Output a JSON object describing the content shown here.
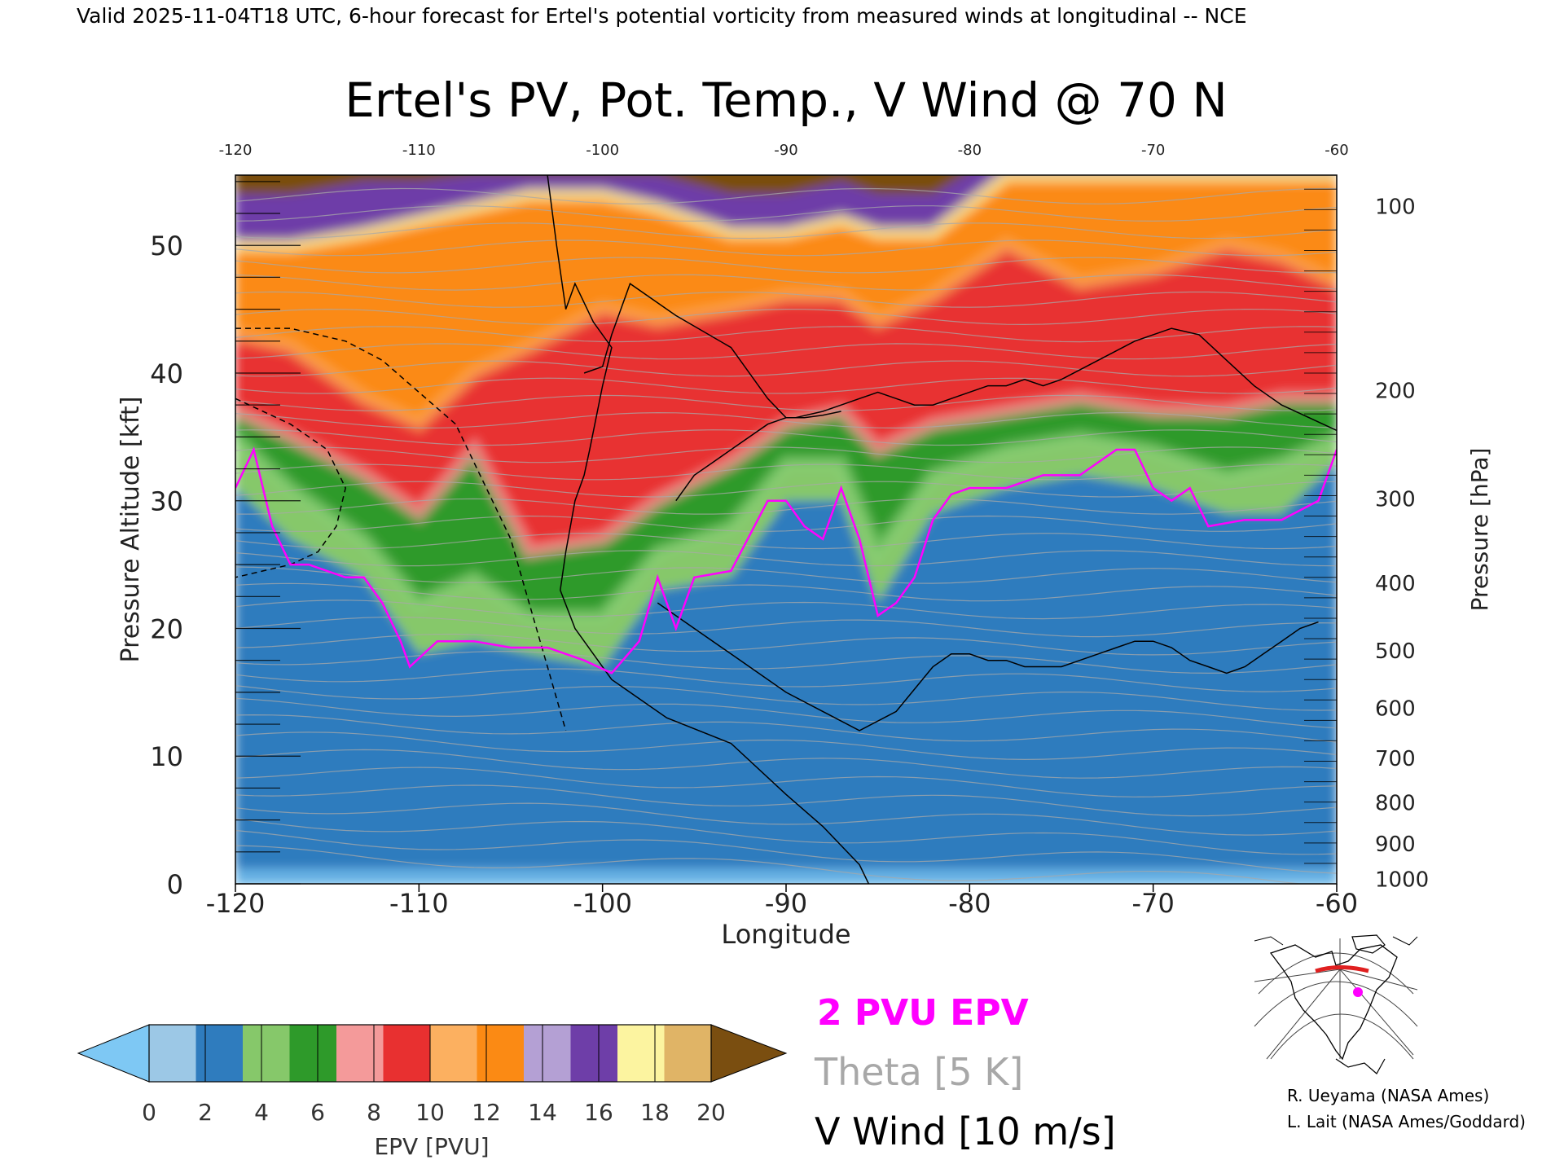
{
  "header": {
    "valid_line": "Valid 2025-11-04T18 UTC, 6-hour forecast for Ertel's potential vorticity from measured winds at longitudinal -- NCE"
  },
  "chart_data": {
    "type": "heatmap",
    "title": "Ertel's PV, Pot. Temp., V Wind @ 70 N",
    "xlabel": "Longitude",
    "ylabel_left": "Pressure Altitude [kft]",
    "ylabel_right": "Pressure [hPa]",
    "xlim": [
      -120,
      -60
    ],
    "ylim": [
      0,
      55.5
    ],
    "x_ticks": [
      -120,
      -110,
      -100,
      -90,
      -80,
      -70,
      -60
    ],
    "x_tick_labels": [
      "-120",
      "-110",
      "-100",
      "-90",
      "-80",
      "-70",
      "-60"
    ],
    "y_ticks": [
      0,
      10,
      20,
      30,
      40,
      50
    ],
    "y_tick_labels": [
      "0",
      "10",
      "20",
      "30",
      "40",
      "50"
    ],
    "pressure_ticks": [
      {
        "label": "100",
        "kft": 53.1
      },
      {
        "label": "200",
        "kft": 38.7
      },
      {
        "label": "300",
        "kft": 30.2
      },
      {
        "label": "400",
        "kft": 23.6
      },
      {
        "label": "500",
        "kft": 18.3
      },
      {
        "label": "600",
        "kft": 13.8
      },
      {
        "label": "700",
        "kft": 9.9
      },
      {
        "label": "800",
        "kft": 6.4
      },
      {
        "label": "900",
        "kft": 3.2
      },
      {
        "label": "1000",
        "kft": 0.4
      }
    ],
    "pv_2pvu_contour": {
      "x": [
        -120,
        -119,
        -118,
        -117,
        -116,
        -114,
        -113,
        -112,
        -111,
        -110.5,
        -109,
        -107,
        -105,
        -103,
        -101,
        -99.5,
        -98,
        -97,
        -96,
        -95,
        -93,
        -91,
        -90,
        -89,
        -88,
        -87,
        -86,
        -85,
        -84,
        -83,
        -82,
        -81,
        -80,
        -78,
        -76,
        -74,
        -72,
        -71,
        -70,
        -69,
        -68,
        -67,
        -65,
        -63,
        -61,
        -60
      ],
      "y": [
        31,
        34,
        28,
        25,
        25,
        24,
        24,
        22,
        19,
        17,
        19,
        19,
        18.5,
        18.5,
        17.5,
        16.5,
        19,
        24,
        20,
        24,
        24.5,
        30,
        30,
        28,
        27,
        31,
        27,
        21,
        22,
        24,
        28.5,
        30.5,
        31,
        31,
        32,
        32,
        34,
        34,
        31,
        30,
        31,
        28,
        28.5,
        28.5,
        30,
        34
      ]
    },
    "v_wind_contours": [
      {
        "label": "10",
        "x": [
          -103,
          -102.5,
          -102,
          -101.5,
          -100.5,
          -99.5,
          -100,
          -100.7,
          -101,
          -101.5,
          -102,
          -102.3,
          -101.5,
          -99.5,
          -96.5,
          -93,
          -90,
          -88,
          -87,
          -86,
          -85.5
        ],
        "y": [
          55.5,
          50,
          45,
          47,
          44,
          42,
          39,
          34,
          32,
          30,
          26,
          23,
          20,
          16,
          13,
          11,
          7,
          4.5,
          3,
          1.5,
          0
        ]
      },
      {
        "label": "10",
        "x": [
          -101,
          -100,
          -99.5,
          -98.5,
          -96,
          -93,
          -91,
          -90,
          -89.5,
          -88,
          -87,
          -86,
          -85,
          -84,
          -83,
          -82,
          -81,
          -79,
          -78,
          -77,
          -76,
          -75,
          -73,
          -71,
          -69,
          -67.5,
          -66,
          -64.5,
          -63,
          -61.5,
          -60
        ],
        "y": [
          40,
          40.5,
          43,
          47,
          44.5,
          42,
          38,
          36.5,
          36.5,
          37,
          37.5,
          38,
          38.5,
          38,
          37.5,
          37.5,
          38,
          39,
          39,
          39.5,
          39,
          39.5,
          41,
          42.5,
          43.5,
          43,
          41,
          39,
          37.5,
          36.5,
          35.5
        ]
      },
      {
        "label": "10",
        "x": [
          -96,
          -95,
          -94,
          -93,
          -92,
          -91,
          -90,
          -89,
          -88,
          -87
        ],
        "y": [
          30,
          32,
          33,
          34,
          35,
          36,
          36.5,
          36.5,
          36.7,
          37
        ]
      },
      {
        "label": "10",
        "x": [
          -97,
          -95,
          -93,
          -90,
          -88,
          -86,
          -84,
          -82,
          -81,
          -80,
          -79,
          -78,
          -77,
          -76,
          -75,
          -74,
          -73,
          -72,
          -71,
          -70,
          -69,
          -68,
          -67,
          -66,
          -65,
          -64,
          -63,
          -62,
          -61
        ],
        "y": [
          22,
          20,
          18,
          15,
          13.5,
          12,
          13.5,
          17,
          18,
          18,
          17.5,
          17.5,
          17,
          17,
          17,
          17.5,
          18,
          18.5,
          19,
          19,
          18.5,
          17.5,
          17,
          16.5,
          17,
          18,
          19,
          20,
          20.5
        ]
      }
    ],
    "v_wind_negative_contours": [
      {
        "label": "-10",
        "x": [
          -120,
          -117,
          -114,
          -112,
          -110,
          -108,
          -107,
          -106,
          -105,
          -104,
          -103,
          -102
        ],
        "y": [
          43.5,
          43.5,
          42.5,
          41,
          38.5,
          36,
          33,
          30,
          27,
          22,
          17,
          12
        ]
      },
      {
        "label": "-30",
        "x": [
          -120,
          -117,
          -115,
          -114,
          -114.5,
          -115.5,
          -117,
          -118.5,
          -120
        ],
        "y": [
          38,
          36,
          34,
          31,
          28,
          26,
          25,
          24.5,
          24
        ]
      }
    ],
    "theta_isentropes_k": [
      280,
      290,
      300,
      310,
      320,
      330,
      340,
      350,
      360,
      370,
      380,
      390,
      400,
      410
    ],
    "pv_fill_stops": [
      {
        "x": -120,
        "layers": [
          [
            0,
            2
          ],
          [
            31,
            4
          ],
          [
            35,
            6
          ],
          [
            37,
            8
          ],
          [
            43,
            12
          ],
          [
            50,
            16
          ],
          [
            54,
            20
          ]
        ]
      },
      {
        "x": -117,
        "layers": [
          [
            0,
            2
          ],
          [
            27,
            4
          ],
          [
            31,
            6
          ],
          [
            35,
            8
          ],
          [
            42,
            12
          ],
          [
            50,
            16
          ],
          [
            54,
            20
          ]
        ]
      },
      {
        "x": -113,
        "layers": [
          [
            0,
            2
          ],
          [
            24,
            4
          ],
          [
            27,
            6
          ],
          [
            32,
            8
          ],
          [
            38,
            12
          ],
          [
            51,
            16
          ],
          [
            55,
            20
          ]
        ]
      },
      {
        "x": -110,
        "layers": [
          [
            0,
            2
          ],
          [
            18,
            4
          ],
          [
            22,
            6
          ],
          [
            29,
            8
          ],
          [
            36,
            12
          ],
          [
            52,
            16
          ],
          [
            55,
            20
          ]
        ]
      },
      {
        "x": -107,
        "layers": [
          [
            0,
            2
          ],
          [
            19,
            4
          ],
          [
            24,
            6
          ],
          [
            34,
            8
          ],
          [
            40,
            12
          ],
          [
            53,
            16
          ],
          [
            55.5,
            20
          ]
        ]
      },
      {
        "x": -104,
        "layers": [
          [
            0,
            2
          ],
          [
            18,
            4
          ],
          [
            21,
            6
          ],
          [
            26,
            8
          ],
          [
            42,
            12
          ],
          [
            54,
            16
          ],
          [
            55.5,
            20
          ]
        ]
      },
      {
        "x": -100,
        "layers": [
          [
            0,
            2
          ],
          [
            17,
            4
          ],
          [
            21,
            6
          ],
          [
            27,
            8
          ],
          [
            45,
            12
          ],
          [
            54,
            16
          ],
          [
            55.5,
            20
          ]
        ]
      },
      {
        "x": -97,
        "layers": [
          [
            0,
            2
          ],
          [
            23,
            4
          ],
          [
            26,
            6
          ],
          [
            30,
            8
          ],
          [
            44,
            12
          ],
          [
            53,
            16
          ],
          [
            55.5,
            20
          ]
        ]
      },
      {
        "x": -93,
        "layers": [
          [
            0,
            2
          ],
          [
            24,
            4
          ],
          [
            28,
            6
          ],
          [
            33,
            8
          ],
          [
            45,
            12
          ],
          [
            51,
            16
          ],
          [
            54,
            20
          ]
        ]
      },
      {
        "x": -90,
        "layers": [
          [
            0,
            2
          ],
          [
            30,
            4
          ],
          [
            33,
            6
          ],
          [
            36,
            8
          ],
          [
            46,
            12
          ],
          [
            51,
            16
          ],
          [
            54,
            20
          ]
        ]
      },
      {
        "x": -87,
        "layers": [
          [
            0,
            2
          ],
          [
            30,
            4
          ],
          [
            33,
            6
          ],
          [
            37,
            8
          ],
          [
            46,
            12
          ],
          [
            52,
            16
          ],
          [
            55,
            20
          ]
        ]
      },
      {
        "x": -85,
        "layers": [
          [
            0,
            2
          ],
          [
            22,
            4
          ],
          [
            26,
            6
          ],
          [
            34,
            8
          ],
          [
            44,
            12
          ],
          [
            51,
            16
          ],
          [
            54,
            20
          ]
        ]
      },
      {
        "x": -82,
        "layers": [
          [
            0,
            2
          ],
          [
            29,
            4
          ],
          [
            32,
            6
          ],
          [
            36,
            8
          ],
          [
            46,
            12
          ],
          [
            51,
            16
          ],
          [
            54,
            20
          ]
        ]
      },
      {
        "x": -78,
        "layers": [
          [
            0,
            2
          ],
          [
            31,
            4
          ],
          [
            34,
            6
          ],
          [
            37,
            8
          ],
          [
            50,
            12
          ],
          [
            55.5,
            16
          ]
        ]
      },
      {
        "x": -74,
        "layers": [
          [
            0,
            2
          ],
          [
            32,
            4
          ],
          [
            35,
            6
          ],
          [
            38,
            8
          ],
          [
            47,
            12
          ],
          [
            55.5,
            16
          ]
        ]
      },
      {
        "x": -70,
        "layers": [
          [
            0,
            2
          ],
          [
            31,
            4
          ],
          [
            34,
            6
          ],
          [
            37,
            8
          ],
          [
            48,
            12
          ],
          [
            55.5,
            16
          ]
        ]
      },
      {
        "x": -66,
        "layers": [
          [
            0,
            2
          ],
          [
            29,
            4
          ],
          [
            32,
            6
          ],
          [
            37,
            8
          ],
          [
            50,
            12
          ],
          [
            55.5,
            16
          ]
        ]
      },
      {
        "x": -63,
        "layers": [
          [
            0,
            2
          ],
          [
            29,
            4
          ],
          [
            33,
            6
          ],
          [
            38,
            8
          ],
          [
            49,
            12
          ],
          [
            55.5,
            16
          ]
        ]
      },
      {
        "x": -60,
        "layers": [
          [
            0,
            2
          ],
          [
            33,
            4
          ],
          [
            35,
            6
          ],
          [
            38,
            8
          ],
          [
            47,
            12
          ],
          [
            55.5,
            16
          ]
        ]
      }
    ],
    "colorbar": {
      "label": "EPV [PVU]",
      "tick_labels": [
        "0",
        "2",
        "4",
        "6",
        "8",
        "10",
        "12",
        "14",
        "16",
        "18",
        "20"
      ],
      "colors": [
        "#9cc8e6",
        "#2f7cbe",
        "#86c86a",
        "#2e9a2a",
        "#f49a9a",
        "#e83030",
        "#fcb060",
        "#fb8a14",
        "#b4a0d4",
        "#6e3ea8",
        "#fcf4a0",
        "#e0b466"
      ],
      "under_color": "#7ec8f4",
      "over_color": "#7a4e10"
    }
  },
  "legend": {
    "pvu_label": "2 PVU EPV",
    "pvu_color": "#ff00ff",
    "theta_label": "Theta [5 K]",
    "theta_color": "#a8a8a8",
    "wind_label": "V Wind [10 m/s]",
    "wind_color": "#000000"
  },
  "locator_map": {
    "icon": "polar-projection-map-icon",
    "marker_color": "#ff00ff",
    "section_color": "#e02020"
  },
  "credits": {
    "line1": "R. Ueyama (NASA Ames)",
    "line2": "L. Lait (NASA Ames/Goddard)"
  }
}
